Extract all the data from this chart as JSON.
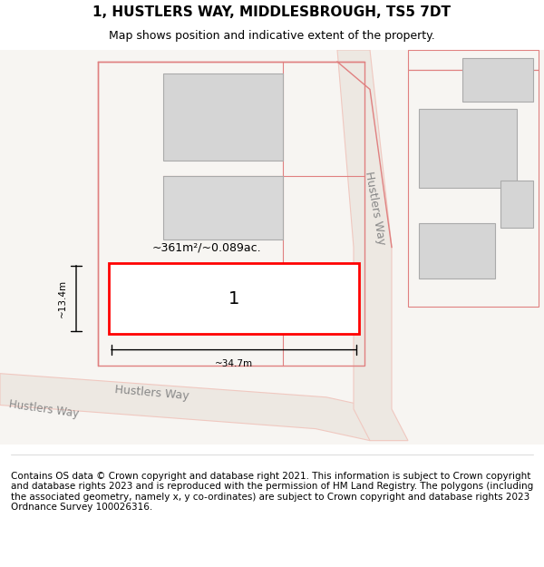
{
  "title": "1, HUSTLERS WAY, MIDDLESBROUGH, TS5 7DT",
  "subtitle": "Map shows position and indicative extent of the property.",
  "footer": "Contains OS data © Crown copyright and database right 2021. This information is subject to Crown copyright and database rights 2023 and is reproduced with the permission of HM Land Registry. The polygons (including the associated geometry, namely x, y co-ordinates) are subject to Crown copyright and database rights 2023 Ordnance Survey 100026316.",
  "area_label": "~361m²/~0.089ac.",
  "width_label": "~34.7m",
  "height_label": "~13.4m",
  "plot_number": "1",
  "bg_color": "#ffffff",
  "map_bg": "#f5f5f0",
  "road_color": "#f0c8c0",
  "road_fill": "#e8e0d8",
  "building_color": "#c8c8c8",
  "building_fill": "#d8d8d8",
  "boundary_color": "#e08080",
  "highlight_color": "#ff0000",
  "highlight_fill": "#ffffff",
  "dim_color": "#000000",
  "title_fontsize": 11,
  "subtitle_fontsize": 9,
  "footer_fontsize": 7.5
}
